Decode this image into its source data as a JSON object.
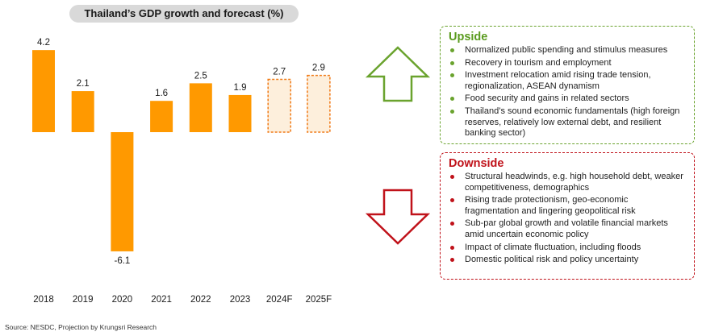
{
  "chart_data": {
    "type": "bar",
    "title": "Thailand’s GDP growth and forecast (%)",
    "categories": [
      "2018",
      "2019",
      "2020",
      "2021",
      "2022",
      "2023",
      "2024F",
      "2025F"
    ],
    "values": [
      4.2,
      2.1,
      -6.1,
      1.6,
      2.5,
      1.9,
      2.7,
      2.9
    ],
    "value_labels": [
      "4.2",
      "2.1",
      "-6.1",
      "1.6",
      "2.5",
      "1.9",
      "2.7",
      "2.9"
    ],
    "forecast": [
      false,
      false,
      false,
      false,
      false,
      false,
      true,
      true
    ],
    "ylim": [
      -6.1,
      4.2
    ],
    "grid": false,
    "colors": {
      "actual": "#ff9900",
      "forecast_fill": "#fdefdc",
      "forecast_border": "#f07a16"
    }
  },
  "source": "Source: NESDC, Projection by Krungsri Research",
  "upside": {
    "title": "Upside",
    "items": [
      "Normalized public spending and stimulus measures",
      "Recovery in tourism and employment",
      "Investment relocation amid rising trade tension, regionalization, ASEAN dynamism",
      "Food security and gains in related sectors",
      "Thailand’s sound economic fundamentals (high foreign reserves, relatively low external debt, and resilient banking sector)"
    ],
    "color": "#6aa32e"
  },
  "downside": {
    "title": "Downside",
    "items": [
      "Structural headwinds, e.g. high household debt, weaker competitiveness, demographics",
      "Rising trade protectionism, geo-economic fragmentation and lingering geopolitical risk",
      "Sub-par global growth and volatile financial markets amid uncertain economic policy",
      "Impact of climate fluctuation, including floods",
      "Domestic political risk and policy uncertainty"
    ],
    "color": "#c0121a"
  },
  "icons": {
    "up": "up-arrow-icon",
    "down": "down-arrow-icon"
  }
}
